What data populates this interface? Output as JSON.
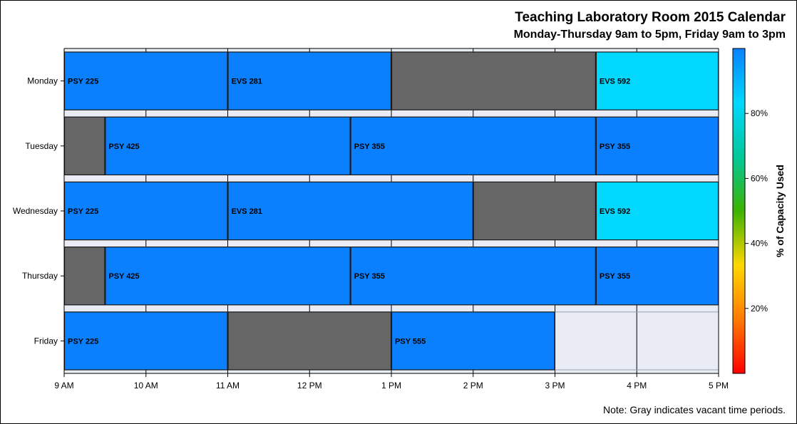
{
  "chart_data": {
    "type": "bar",
    "title": "Teaching Laboratory Room 2015 Calendar",
    "subtitle": "Monday-Thursday 9am to 5pm, Friday 9am to 3pm",
    "note": "Note: Gray indicates vacant time periods.",
    "x_ticks": [
      "9 AM",
      "10 AM",
      "11 AM",
      "12 PM",
      "1 PM",
      "2 PM",
      "3 PM",
      "4 PM",
      "5 PM"
    ],
    "x_range_hours": [
      9,
      17
    ],
    "days": [
      "Monday",
      "Tuesday",
      "Wednesday",
      "Thursday",
      "Friday"
    ],
    "vacant_color": "#666666",
    "background_color": "#e9ecf5",
    "colorbar": {
      "title": "% of Capacity Used",
      "ticks": [
        "20%",
        "40%",
        "60%",
        "80%"
      ],
      "tick_values": [
        20,
        40,
        60,
        80
      ],
      "range": [
        0,
        100
      ],
      "colors": [
        "#ff0000",
        "#ff7a00",
        "#ffd700",
        "#3cb300",
        "#00c89a",
        "#00d8ff",
        "#0a80ff"
      ]
    },
    "bookings": [
      {
        "day": "Monday",
        "start": 9.0,
        "end": 11.0,
        "label": "PSY 225",
        "color": "#0a80ff"
      },
      {
        "day": "Monday",
        "start": 11.0,
        "end": 13.0,
        "label": "EVS 281",
        "color": "#0a80ff"
      },
      {
        "day": "Monday",
        "start": 13.0,
        "end": 15.5,
        "label": "",
        "color": "#666666"
      },
      {
        "day": "Monday",
        "start": 15.5,
        "end": 17.0,
        "label": "EVS 592",
        "color": "#00d8ff"
      },
      {
        "day": "Tuesday",
        "start": 9.0,
        "end": 9.5,
        "label": "",
        "color": "#666666"
      },
      {
        "day": "Tuesday",
        "start": 9.5,
        "end": 12.5,
        "label": "PSY 425",
        "color": "#0a80ff"
      },
      {
        "day": "Tuesday",
        "start": 12.5,
        "end": 15.5,
        "label": "PSY 355",
        "color": "#0a80ff"
      },
      {
        "day": "Tuesday",
        "start": 15.5,
        "end": 17.0,
        "label": "PSY 355",
        "color": "#0a80ff"
      },
      {
        "day": "Wednesday",
        "start": 9.0,
        "end": 11.0,
        "label": "PSY 225",
        "color": "#0a80ff"
      },
      {
        "day": "Wednesday",
        "start": 11.0,
        "end": 14.0,
        "label": "EVS 281",
        "color": "#0a80ff"
      },
      {
        "day": "Wednesday",
        "start": 14.0,
        "end": 15.5,
        "label": "",
        "color": "#666666"
      },
      {
        "day": "Wednesday",
        "start": 15.5,
        "end": 17.0,
        "label": "EVS 592",
        "color": "#00d8ff"
      },
      {
        "day": "Thursday",
        "start": 9.0,
        "end": 9.5,
        "label": "",
        "color": "#666666"
      },
      {
        "day": "Thursday",
        "start": 9.5,
        "end": 12.5,
        "label": "PSY 425",
        "color": "#0a80ff"
      },
      {
        "day": "Thursday",
        "start": 12.5,
        "end": 15.5,
        "label": "PSY 355",
        "color": "#0a80ff"
      },
      {
        "day": "Thursday",
        "start": 15.5,
        "end": 17.0,
        "label": "PSY 355",
        "color": "#0a80ff"
      },
      {
        "day": "Friday",
        "start": 9.0,
        "end": 11.0,
        "label": "PSY 225",
        "color": "#0a80ff"
      },
      {
        "day": "Friday",
        "start": 11.0,
        "end": 13.0,
        "label": "",
        "color": "#666666"
      },
      {
        "day": "Friday",
        "start": 13.0,
        "end": 15.0,
        "label": "PSY 555",
        "color": "#0a80ff"
      }
    ]
  }
}
